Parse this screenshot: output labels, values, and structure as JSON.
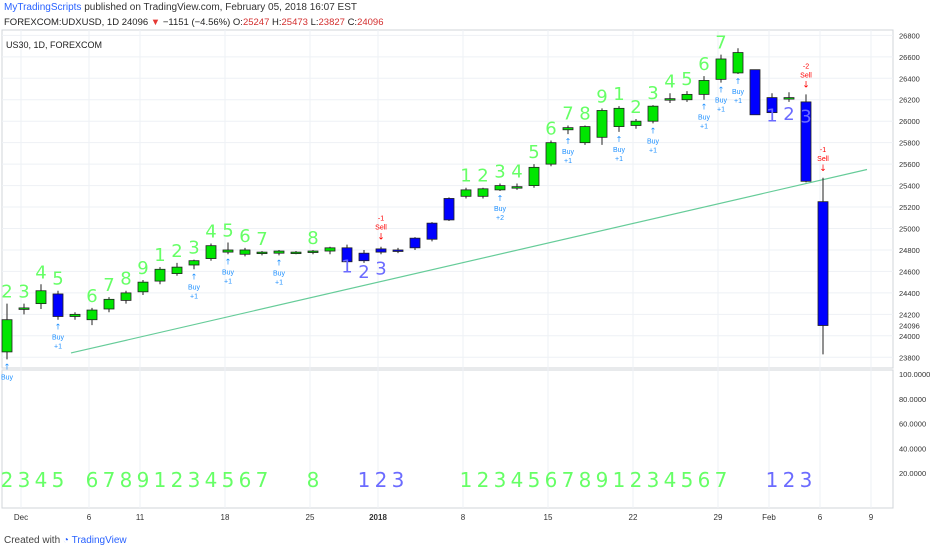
{
  "header": {
    "publisher": "MyTradingScripts",
    "published_text": "published on TradingView.com, February 05, 2018 16:07 EST",
    "symbol": "FOREXCOM:UDXUSD, 1D",
    "price": "24096",
    "change": "−1151 (−4.56%)",
    "o_label": "O:",
    "o_value": "25247",
    "h_label": "H:",
    "h_value": "25473",
    "l_label": "L:",
    "l_value": "23827",
    "c_label": "C:",
    "c_value": "24096"
  },
  "chart_label": "US30, 1D, FOREXCOM",
  "footer": {
    "created_with": "Created with",
    "brand": "TradingView"
  },
  "colors": {
    "bull": "#00e600",
    "bear": "#0000ff",
    "count": "#66ff66",
    "count_bear": "#6b6bff",
    "trend": "#66cc99",
    "buy": "#1e90ff",
    "sell": "#ff0000",
    "lx": "#cc44ff",
    "grid": "#eef1f5"
  },
  "chart_data": {
    "type": "candlestick",
    "y_ticks": [
      "26800",
      "26600",
      "26400",
      "26200",
      "26000",
      "25800",
      "25600",
      "25400",
      "25200",
      "25000",
      "24800",
      "24600",
      "24400",
      "24200",
      "24000",
      "23800"
    ],
    "current_price_label": "24096",
    "ylim": [
      23700,
      26850
    ],
    "x_ticks": [
      {
        "label": "Dec",
        "i": 0
      },
      {
        "label": "6",
        "i": 4
      },
      {
        "label": "11",
        "i": 7
      },
      {
        "label": "18",
        "i": 12
      },
      {
        "label": "25",
        "i": 17
      },
      {
        "label": "2018",
        "i": 21
      },
      {
        "label": "8",
        "i": 26
      },
      {
        "label": "15",
        "i": 31
      },
      {
        "label": "22",
        "i": 36
      },
      {
        "label": "29",
        "i": 41
      },
      {
        "label": "Feb",
        "i": 44
      },
      {
        "label": "6",
        "i": 47
      },
      {
        "label": "9",
        "i": 50
      }
    ],
    "candles": [
      {
        "o": 23850,
        "h": 24300,
        "l": 23780,
        "c": 24150
      },
      {
        "o": 24250,
        "h": 24300,
        "l": 24200,
        "c": 24260
      },
      {
        "o": 24300,
        "h": 24480,
        "l": 24250,
        "c": 24420
      },
      {
        "o": 24390,
        "h": 24420,
        "l": 24150,
        "c": 24180
      },
      {
        "o": 24180,
        "h": 24220,
        "l": 24150,
        "c": 24200
      },
      {
        "o": 24150,
        "h": 24260,
        "l": 24100,
        "c": 24240
      },
      {
        "o": 24250,
        "h": 24360,
        "l": 24220,
        "c": 24340
      },
      {
        "o": 24330,
        "h": 24420,
        "l": 24300,
        "c": 24400
      },
      {
        "o": 24410,
        "h": 24520,
        "l": 24380,
        "c": 24500
      },
      {
        "o": 24510,
        "h": 24640,
        "l": 24480,
        "c": 24620
      },
      {
        "o": 24580,
        "h": 24680,
        "l": 24560,
        "c": 24640
      },
      {
        "o": 24660,
        "h": 24710,
        "l": 24620,
        "c": 24700
      },
      {
        "o": 24720,
        "h": 24860,
        "l": 24700,
        "c": 24840
      },
      {
        "o": 24780,
        "h": 24870,
        "l": 24760,
        "c": 24800
      },
      {
        "o": 24760,
        "h": 24820,
        "l": 24740,
        "c": 24800
      },
      {
        "o": 24770,
        "h": 24790,
        "l": 24750,
        "c": 24780
      },
      {
        "o": 24770,
        "h": 24800,
        "l": 24750,
        "c": 24790
      },
      {
        "o": 24770,
        "h": 24790,
        "l": 24760,
        "c": 24780
      },
      {
        "o": 24780,
        "h": 24800,
        "l": 24760,
        "c": 24790
      },
      {
        "o": 24790,
        "h": 24830,
        "l": 24760,
        "c": 24820
      },
      {
        "o": 24820,
        "h": 24850,
        "l": 24640,
        "c": 24690
      },
      {
        "o": 24770,
        "h": 24800,
        "l": 24680,
        "c": 24700
      },
      {
        "o": 24810,
        "h": 24830,
        "l": 24760,
        "c": 24780
      },
      {
        "o": 24800,
        "h": 24820,
        "l": 24770,
        "c": 24790
      },
      {
        "o": 24910,
        "h": 24920,
        "l": 24800,
        "c": 24820
      },
      {
        "o": 25050,
        "h": 25060,
        "l": 24880,
        "c": 24900
      },
      {
        "o": 25280,
        "h": 25290,
        "l": 25070,
        "c": 25080
      },
      {
        "o": 25300,
        "h": 25380,
        "l": 25280,
        "c": 25360
      },
      {
        "o": 25300,
        "h": 25380,
        "l": 25280,
        "c": 25370
      },
      {
        "o": 25360,
        "h": 25420,
        "l": 25350,
        "c": 25400
      },
      {
        "o": 25380,
        "h": 25420,
        "l": 25360,
        "c": 25390
      },
      {
        "o": 25400,
        "h": 25600,
        "l": 25380,
        "c": 25570
      },
      {
        "o": 25600,
        "h": 25820,
        "l": 25580,
        "c": 25800
      },
      {
        "o": 25920,
        "h": 25960,
        "l": 25880,
        "c": 25940
      },
      {
        "o": 25800,
        "h": 25960,
        "l": 25780,
        "c": 25950
      },
      {
        "o": 25850,
        "h": 26120,
        "l": 25780,
        "c": 26100
      },
      {
        "o": 25950,
        "h": 26140,
        "l": 25900,
        "c": 26120
      },
      {
        "o": 25960,
        "h": 26020,
        "l": 25930,
        "c": 26000
      },
      {
        "o": 26000,
        "h": 26150,
        "l": 25980,
        "c": 26140
      },
      {
        "o": 26200,
        "h": 26260,
        "l": 26170,
        "c": 26210
      },
      {
        "o": 26200,
        "h": 26280,
        "l": 26180,
        "c": 26250
      },
      {
        "o": 26250,
        "h": 26420,
        "l": 26200,
        "c": 26380
      },
      {
        "o": 26390,
        "h": 26620,
        "l": 26360,
        "c": 26580
      },
      {
        "o": 26450,
        "h": 26680,
        "l": 26440,
        "c": 26640
      },
      {
        "o": 26480,
        "h": 26480,
        "l": 26060,
        "c": 26060
      },
      {
        "o": 26220,
        "h": 26260,
        "l": 26060,
        "c": 26080
      },
      {
        "o": 26220,
        "h": 26270,
        "l": 26180,
        "c": 26220
      },
      {
        "o": 26180,
        "h": 26250,
        "l": 25430,
        "c": 25440
      },
      {
        "o": 25250,
        "h": 25473,
        "l": 23827,
        "c": 24096
      }
    ],
    "trendline": [
      {
        "i": 2,
        "p": 23840
      },
      {
        "i": 50,
        "p": 25550
      }
    ],
    "setup_counts": [
      {
        "i": 0,
        "n": "2"
      },
      {
        "i": 1,
        "n": "3"
      },
      {
        "i": 2,
        "n": "4"
      },
      {
        "i": 3,
        "n": "5"
      },
      {
        "i": 5,
        "n": "6"
      },
      {
        "i": 6,
        "n": "7"
      },
      {
        "i": 7,
        "n": "8"
      },
      {
        "i": 8,
        "n": "9"
      },
      {
        "i": 9,
        "n": "1"
      },
      {
        "i": 10,
        "n": "2"
      },
      {
        "i": 11,
        "n": "3"
      },
      {
        "i": 12,
        "n": "4"
      },
      {
        "i": 13,
        "n": "5"
      },
      {
        "i": 14,
        "n": "6"
      },
      {
        "i": 15,
        "n": "7"
      },
      {
        "i": 18,
        "n": "8"
      },
      {
        "i": 20,
        "n": "1",
        "bear": true
      },
      {
        "i": 21,
        "n": "2",
        "bear": true
      },
      {
        "i": 22,
        "n": "3",
        "bear": true
      },
      {
        "i": 27,
        "n": "1"
      },
      {
        "i": 28,
        "n": "2"
      },
      {
        "i": 29,
        "n": "3"
      },
      {
        "i": 30,
        "n": "4"
      },
      {
        "i": 31,
        "n": "5"
      },
      {
        "i": 32,
        "n": "6"
      },
      {
        "i": 33,
        "n": "7"
      },
      {
        "i": 34,
        "n": "8"
      },
      {
        "i": 35,
        "n": "9"
      },
      {
        "i": 36,
        "n": "1"
      },
      {
        "i": 37,
        "n": "2"
      },
      {
        "i": 38,
        "n": "3"
      },
      {
        "i": 39,
        "n": "4"
      },
      {
        "i": 40,
        "n": "5"
      },
      {
        "i": 41,
        "n": "6"
      },
      {
        "i": 42,
        "n": "7"
      },
      {
        "i": 45,
        "n": "1",
        "bear": true
      },
      {
        "i": 46,
        "n": "2",
        "bear": true
      },
      {
        "i": 47,
        "n": "3",
        "bear": true
      }
    ],
    "signals": [
      {
        "i": 0,
        "type": "buy",
        "text": "Buy"
      },
      {
        "i": 3,
        "type": "buy",
        "text": "Buy",
        "sub": "+1"
      },
      {
        "i": 11,
        "type": "buy",
        "text": "Buy",
        "sub": "+1"
      },
      {
        "i": 13,
        "type": "buy",
        "text": "Buy",
        "sub": "+1"
      },
      {
        "i": 16,
        "type": "buy",
        "text": "Buy",
        "sub": "+1"
      },
      {
        "i": 29,
        "type": "buy",
        "text": "Buy",
        "sub": "+2"
      },
      {
        "i": 33,
        "type": "buy",
        "text": "Buy",
        "sub": "+1"
      },
      {
        "i": 36,
        "type": "buy",
        "text": "Buy",
        "sub": "+1"
      },
      {
        "i": 38,
        "type": "buy",
        "text": "Buy",
        "sub": "+1"
      },
      {
        "i": 41,
        "type": "buy",
        "text": "Buy",
        "sub": "+1"
      },
      {
        "i": 42,
        "type": "buy",
        "text": "Buy",
        "sub": "+1"
      },
      {
        "i": 43,
        "type": "buy",
        "text": "Buy",
        "sub": "+1"
      },
      {
        "i": 22,
        "type": "sell",
        "text": "Sell",
        "top": "-1"
      },
      {
        "i": 47,
        "type": "sell",
        "text": "Sell",
        "top": "-2"
      },
      {
        "i": 48,
        "type": "sell",
        "text": "Sell",
        "top": "-1"
      }
    ],
    "lower_counts": [
      {
        "i": 0,
        "n": "2"
      },
      {
        "i": 1,
        "n": "3"
      },
      {
        "i": 2,
        "n": "4"
      },
      {
        "i": 3,
        "n": "5"
      },
      {
        "i": 5,
        "n": "6"
      },
      {
        "i": 6,
        "n": "7"
      },
      {
        "i": 7,
        "n": "8"
      },
      {
        "i": 8,
        "n": "9"
      },
      {
        "i": 9,
        "n": "1"
      },
      {
        "i": 10,
        "n": "2"
      },
      {
        "i": 11,
        "n": "3"
      },
      {
        "i": 12,
        "n": "4"
      },
      {
        "i": 13,
        "n": "5"
      },
      {
        "i": 14,
        "n": "6"
      },
      {
        "i": 15,
        "n": "7"
      },
      {
        "i": 18,
        "n": "8"
      },
      {
        "i": 21,
        "n": "1",
        "bear": true
      },
      {
        "i": 22,
        "n": "2",
        "bear": true
      },
      {
        "i": 23,
        "n": "3",
        "bear": true
      },
      {
        "i": 27,
        "n": "1"
      },
      {
        "i": 28,
        "n": "2"
      },
      {
        "i": 29,
        "n": "3"
      },
      {
        "i": 30,
        "n": "4"
      },
      {
        "i": 31,
        "n": "5"
      },
      {
        "i": 32,
        "n": "6"
      },
      {
        "i": 33,
        "n": "7"
      },
      {
        "i": 34,
        "n": "8"
      },
      {
        "i": 35,
        "n": "9"
      },
      {
        "i": 36,
        "n": "1"
      },
      {
        "i": 37,
        "n": "2"
      },
      {
        "i": 38,
        "n": "3"
      },
      {
        "i": 39,
        "n": "4"
      },
      {
        "i": 40,
        "n": "5"
      },
      {
        "i": 41,
        "n": "6"
      },
      {
        "i": 42,
        "n": "7"
      },
      {
        "i": 45,
        "n": "1",
        "bear": true
      },
      {
        "i": 46,
        "n": "2",
        "bear": true
      },
      {
        "i": 47,
        "n": "3",
        "bear": true
      }
    ],
    "lower_y_ticks": [
      "100.0000",
      "80.0000",
      "60.0000",
      "40.0000",
      "20.0000"
    ]
  }
}
